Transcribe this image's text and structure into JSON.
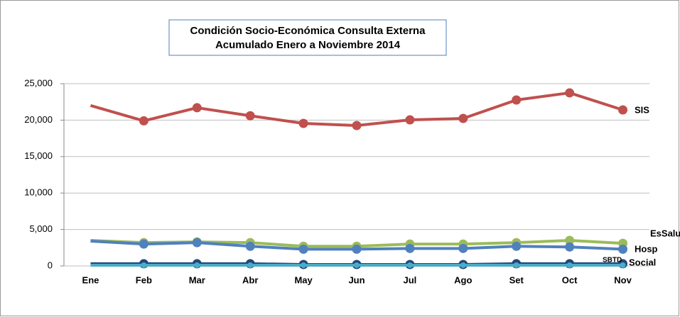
{
  "chart_data": {
    "type": "line",
    "title": [
      "Condición Socio-Económica Consulta Externa",
      "Acumulado Enero a Noviembre 2014"
    ],
    "categories": [
      "Ene",
      "Feb",
      "Mar",
      "Abr",
      "May",
      "Jun",
      "Jul",
      "Ago",
      "Set",
      "Oct",
      "Nov"
    ],
    "series": [
      {
        "name": "SIS",
        "color": "#c0504d",
        "values": [
          22000,
          19900,
          21700,
          20600,
          19550,
          19260,
          20040,
          20230,
          22760,
          23740,
          21400
        ]
      },
      {
        "name": "EsSalud",
        "color": "#9bbb59",
        "values": [
          3500,
          3200,
          3300,
          3200,
          2700,
          2700,
          3000,
          3000,
          3200,
          3500,
          3100
        ]
      },
      {
        "name": "Hosp",
        "color": "#4f81bd",
        "values": [
          3400,
          3000,
          3200,
          2700,
          2300,
          2300,
          2400,
          2400,
          2700,
          2600,
          2300
        ]
      },
      {
        "name": "SBTD",
        "color": "#1f497d",
        "values": [
          300,
          300,
          300,
          300,
          200,
          200,
          200,
          200,
          300,
          300,
          300
        ]
      },
      {
        "name": "Social",
        "color": "#4bacc6",
        "values": [
          100,
          100,
          100,
          100,
          100,
          100,
          100,
          100,
          100,
          100,
          100
        ]
      }
    ],
    "ylim": [
      0,
      25000
    ],
    "yticks": [
      0,
      {
        "value": 5000,
        "label": "5,000"
      },
      {
        "value": 10000,
        "label": "10,000"
      },
      {
        "value": 15000,
        "label": "15,000"
      },
      {
        "value": 20000,
        "label": "20,000"
      },
      {
        "value": 25000,
        "label": "25,000"
      }
    ],
    "grid": true
  }
}
